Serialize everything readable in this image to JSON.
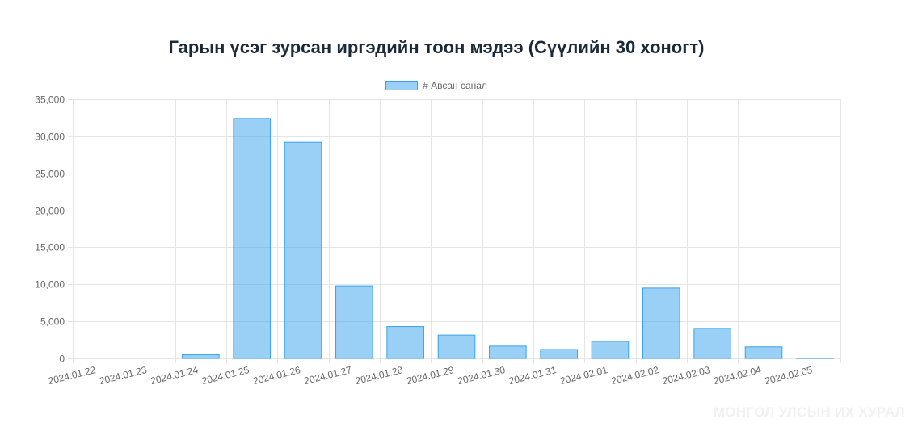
{
  "chart_data": {
    "type": "bar",
    "title": "Гарын үсэг зурсан иргэдийн тоон мэдээ (Сүүлийн 30 хоногт)",
    "categories": [
      "2024.01.22",
      "2024.01.23",
      "2024.01.24",
      "2024.01.25",
      "2024.01.26",
      "2024.01.27",
      "2024.01.28",
      "2024.01.29",
      "2024.01.30",
      "2024.01.31",
      "2024.02.01",
      "2024.02.02",
      "2024.02.03",
      "2024.02.04",
      "2024.02.05"
    ],
    "series": [
      {
        "name": "# Авсан санал",
        "values": [
          0,
          0,
          500,
          32400,
          29200,
          9800,
          4300,
          3150,
          1650,
          1200,
          2300,
          9500,
          4050,
          1550,
          50
        ]
      }
    ],
    "ylim": [
      0,
      35000
    ],
    "yticks": [
      "0",
      "5,000",
      "10,000",
      "15,000",
      "20,000",
      "25,000",
      "30,000",
      "35,000"
    ],
    "ytick_values": [
      0,
      5000,
      10000,
      15000,
      20000,
      25000,
      30000,
      35000
    ],
    "grid": true,
    "legend_position": "top",
    "colors": {
      "bar_fill": "rgba(54,162,235,0.5)",
      "bar_border": "#36a2eb",
      "grid": "#e5e5e5",
      "tick_text": "#666666"
    }
  },
  "watermark": "МОНГОЛ УЛСЫН ИХ ХУРАЛ"
}
